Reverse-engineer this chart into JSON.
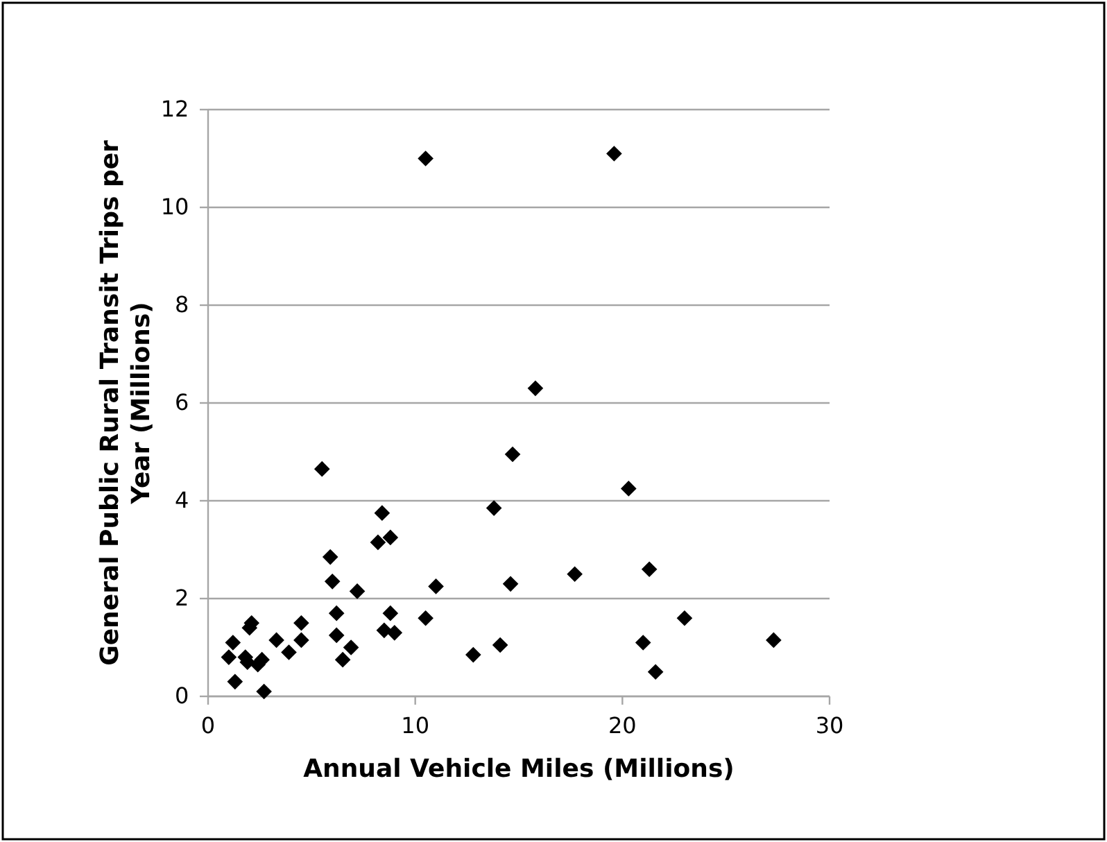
{
  "chart_data": {
    "type": "scatter",
    "xlabel": "Annual Vehicle Miles (Millions)",
    "ylabel": "General Public Rural Transit Trips per Year (Millions)",
    "xlim": [
      0,
      30
    ],
    "ylim": [
      0,
      12
    ],
    "xticks": [
      0,
      10,
      20,
      30
    ],
    "yticks": [
      0,
      2,
      4,
      6,
      8,
      10,
      12
    ],
    "grid": "y",
    "marker": "diamond",
    "series": [
      {
        "color": "#000000",
        "x": [
          1.0,
          1.2,
          1.3,
          1.8,
          1.9,
          2.0,
          2.1,
          2.4,
          2.6,
          2.7,
          3.3,
          3.9,
          4.5,
          4.5,
          5.5,
          5.9,
          6.0,
          6.2,
          6.2,
          6.5,
          6.9,
          7.2,
          8.2,
          8.4,
          8.5,
          8.8,
          8.8,
          9.0,
          10.5,
          10.5,
          11.0,
          12.8,
          13.8,
          14.1,
          14.6,
          14.7,
          15.8,
          17.7,
          19.6,
          20.3,
          21.0,
          21.3,
          21.6,
          23.0,
          27.3
        ],
        "values": [
          0.8,
          1.1,
          0.3,
          0.8,
          0.7,
          1.4,
          1.5,
          0.65,
          0.75,
          0.1,
          1.15,
          0.9,
          1.5,
          1.15,
          4.65,
          2.85,
          2.35,
          1.7,
          1.25,
          0.75,
          1.0,
          2.15,
          3.15,
          3.75,
          1.35,
          3.25,
          1.7,
          1.3,
          11.0,
          1.6,
          2.25,
          0.85,
          3.85,
          1.05,
          2.3,
          4.95,
          6.3,
          2.5,
          11.1,
          4.25,
          1.1,
          2.6,
          0.5,
          1.6,
          1.15
        ]
      }
    ]
  }
}
